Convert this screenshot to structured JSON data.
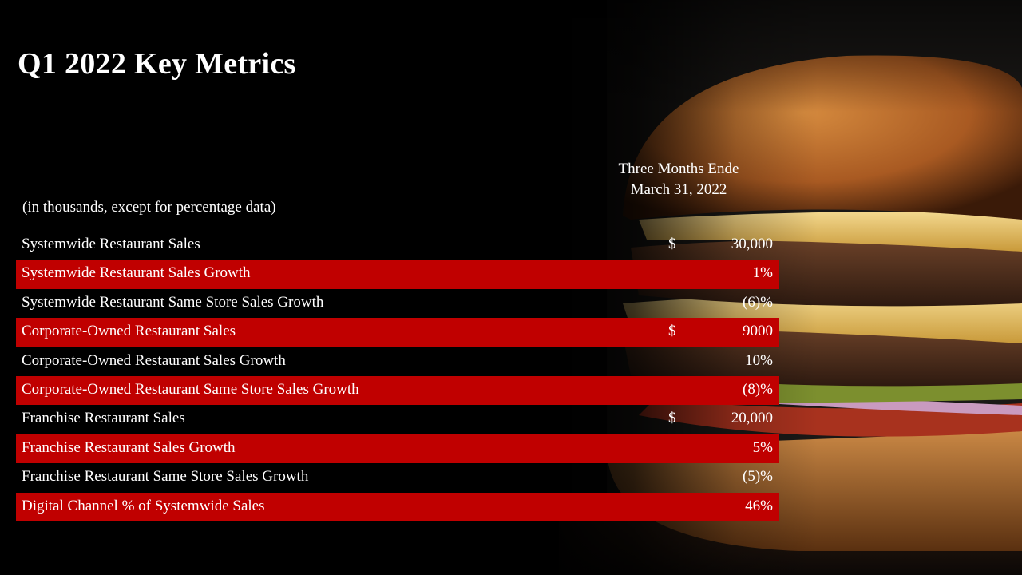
{
  "slide": {
    "title": "Q1 2022 Key Metrics",
    "period_line1": "Three Months  Ende",
    "period_line2": "March 31, 2022",
    "note": "(in thousands, except for percentage data)"
  },
  "colors": {
    "highlight_row": "#c00000",
    "background": "#000000"
  },
  "rows": [
    {
      "label": "Systemwide Restaurant Sales",
      "currency": "$",
      "value": "30,000",
      "highlight": false
    },
    {
      "label": "Systemwide Restaurant Sales Growth",
      "currency": "",
      "value": "1%",
      "highlight": true
    },
    {
      "label": "Systemwide Restaurant Same Store Sales Growth",
      "currency": "",
      "value": "(6)%",
      "highlight": false
    },
    {
      "label": "Corporate-Owned Restaurant Sales",
      "currency": "$",
      "value": "9000",
      "highlight": true
    },
    {
      "label": "Corporate-Owned Restaurant Sales Growth",
      "currency": "",
      "value": "10%",
      "highlight": false
    },
    {
      "label": "Corporate-Owned Restaurant Same Store Sales Growth",
      "currency": "",
      "value": "(8)%",
      "highlight": true
    },
    {
      "label": "Franchise Restaurant Sales",
      "currency": "$",
      "value": "20,000",
      "highlight": false
    },
    {
      "label": "Franchise Restaurant Sales Growth",
      "currency": "",
      "value": "5%",
      "highlight": true
    },
    {
      "label": "Franchise Restaurant Same Store Sales Growth",
      "currency": "",
      "value": "(5)%",
      "highlight": false
    },
    {
      "label": "Digital Channel % of Systemwide Sales",
      "currency": "",
      "value": "46%",
      "highlight": true
    }
  ]
}
